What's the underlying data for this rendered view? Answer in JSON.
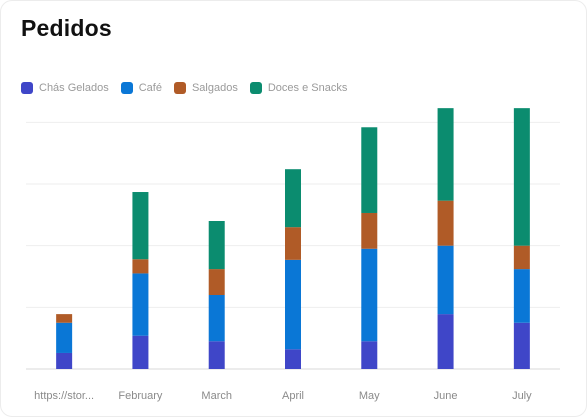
{
  "card": {
    "title": "Pedidos"
  },
  "colors": {
    "Chás Gelados": "#3f46c8",
    "Café": "#0a77d6",
    "Salgados": "#b05b27",
    "Doces e Snacks": "#0b8c6f",
    "grid": "#eeeeee",
    "axis": "#d8d8d8"
  },
  "chart_data": {
    "type": "bar",
    "stacked": true,
    "title": "Pedidos",
    "xlabel": "",
    "ylabel": "",
    "ylim": [
      0,
      42
    ],
    "yticks": [
      0,
      10,
      20,
      30,
      40
    ],
    "y_tick_labels_visible": false,
    "grid": true,
    "legend_position": "top-left",
    "categories": [
      "https://stor...",
      "February",
      "March",
      "April",
      "May",
      "June",
      "July"
    ],
    "series": [
      {
        "name": "Chás Gelados",
        "values": [
          2.6,
          5.4,
          4.5,
          3.2,
          4.5,
          8.9,
          7.5
        ]
      },
      {
        "name": "Café",
        "values": [
          4.9,
          10.1,
          7.5,
          14.5,
          15.0,
          11.1,
          8.7
        ]
      },
      {
        "name": "Salgados",
        "values": [
          1.4,
          2.3,
          4.2,
          5.3,
          5.8,
          7.3,
          3.8
        ]
      },
      {
        "name": "Doces e Snacks",
        "values": [
          0,
          10.9,
          7.8,
          9.4,
          13.9,
          15.0,
          22.3
        ]
      }
    ]
  }
}
